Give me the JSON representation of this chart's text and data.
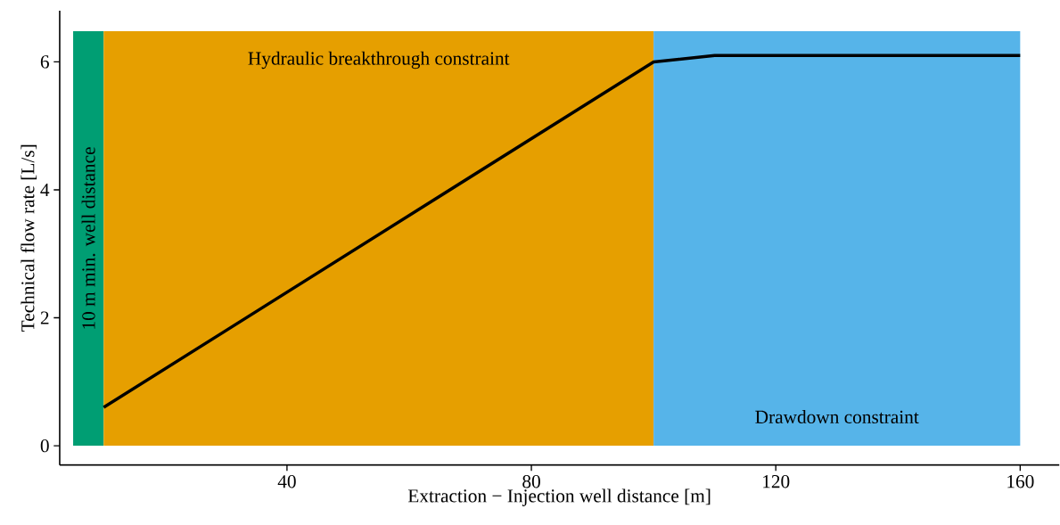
{
  "chart_data": {
    "type": "line",
    "xlabel": "Extraction − Injection well distance [m]",
    "ylabel": "Technical flow rate [L/s]",
    "series": [
      {
        "color": "#000000",
        "x": [
          10,
          100,
          110,
          160
        ],
        "values": [
          0.6,
          6.0,
          6.1,
          6.1
        ]
      }
    ],
    "xlim": [
      2.8,
      166.4
    ],
    "ylim": [
      -0.3,
      6.8
    ],
    "xticks": [
      40,
      80,
      120,
      160
    ],
    "yticks": [
      0,
      2,
      4,
      6
    ],
    "bands": [
      {
        "axis": "x",
        "from": 5,
        "to": 10,
        "label": "10 m min. well distance",
        "color": "#009e73"
      },
      {
        "axis": "x",
        "from": 10,
        "to": 100,
        "label": "Hydraulic breakthrough constraint",
        "color": "#e69f00"
      },
      {
        "axis": "x",
        "from": 100,
        "to": 160,
        "label": "Drawdown constraint",
        "color": "#56b4e9"
      }
    ]
  }
}
